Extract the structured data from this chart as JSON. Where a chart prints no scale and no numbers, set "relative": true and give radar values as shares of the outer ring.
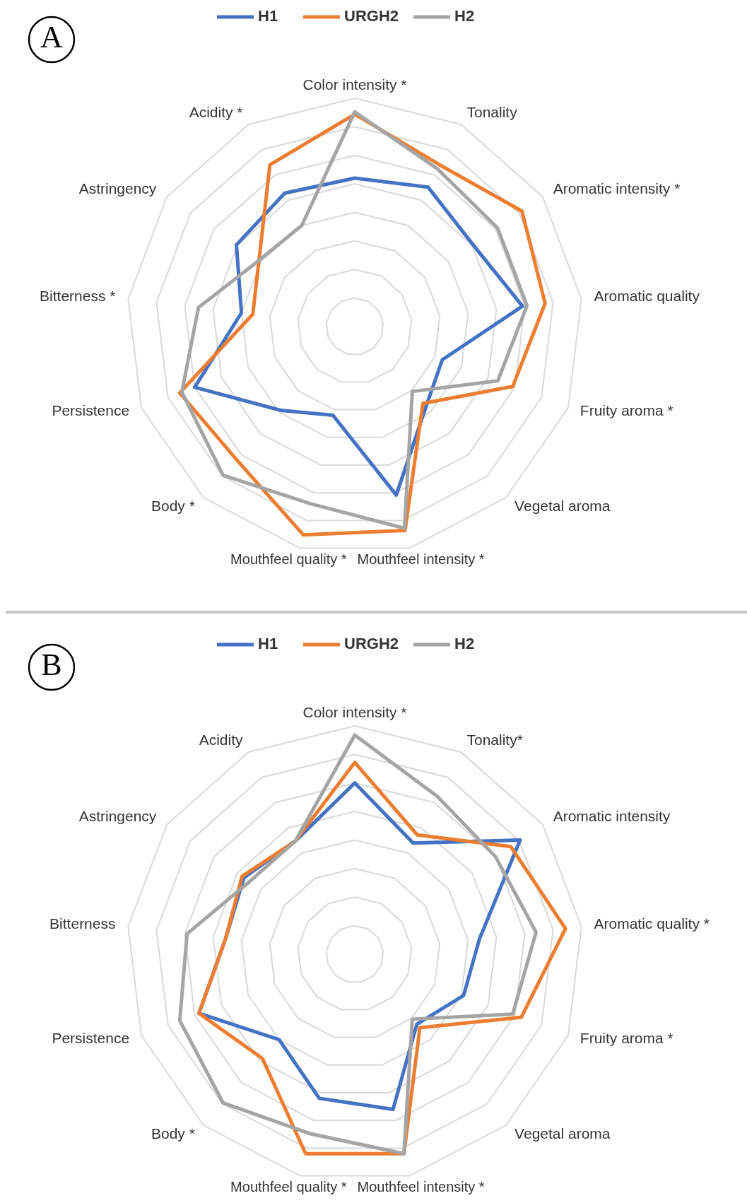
{
  "chart_data": [
    {
      "type": "radar",
      "title": "A",
      "relative": true,
      "grid": true,
      "legend": "top",
      "categories": [
        "Color intensity *",
        "Tonality",
        "Aromatic intensity *",
        "Aromatic quality",
        "Fruity aroma *",
        "Vegetal aroma",
        "Mouthfeel intensity *",
        "Mouthfeel quality *",
        "Body *",
        "Persistence",
        "Bitterness *",
        "Astringency",
        "Acidity *"
      ],
      "series": [
        {
          "name": "H1",
          "color": "#4472c4",
          "values": [
            0.65,
            0.69,
            0.63,
            0.74,
            0.41,
            0.47,
            0.76,
            0.4,
            0.49,
            0.75,
            0.5,
            0.63,
            0.66
          ]
        },
        {
          "name": "URGH2",
          "color": "#ed7d31",
          "values": [
            0.93,
            0.8,
            0.89,
            0.84,
            0.74,
            0.45,
            0.92,
            0.94,
            0.78,
            0.82,
            0.45,
            0.51,
            0.8
          ]
        },
        {
          "name": "H2",
          "color": "#a5a5a5",
          "values": [
            0.94,
            0.78,
            0.76,
            0.76,
            0.67,
            0.38,
            0.91,
            0.8,
            0.87,
            0.81,
            0.69,
            0.51,
            0.5
          ]
        }
      ]
    },
    {
      "type": "radar",
      "title": "B",
      "relative": true,
      "grid": true,
      "legend": "top",
      "categories": [
        "Color intensity *",
        "Tonality*",
        "Aromatic intensity",
        "Aromatic quality *",
        "Fruity aroma *",
        "Vegetal aroma",
        "Mouthfeel intensity *",
        "Mouthfeel quality *",
        "Body *",
        "Persistence",
        "Bitterness",
        "Astringency",
        "Acidity"
      ],
      "series": [
        {
          "name": "H1",
          "color": "#4472c4",
          "values": [
            0.75,
            0.55,
            0.88,
            0.55,
            0.51,
            0.41,
            0.7,
            0.65,
            0.5,
            0.73,
            0.57,
            0.59,
            0.56
          ]
        },
        {
          "name": "URGH2",
          "color": "#ed7d31",
          "values": [
            0.84,
            0.59,
            0.83,
            0.93,
            0.78,
            0.43,
            0.9,
            0.9,
            0.61,
            0.73,
            0.57,
            0.6,
            0.56
          ]
        },
        {
          "name": "H2",
          "color": "#a5a5a5",
          "values": [
            0.96,
            0.78,
            0.75,
            0.8,
            0.74,
            0.38,
            0.9,
            0.81,
            0.87,
            0.82,
            0.74,
            0.56,
            0.56
          ]
        }
      ]
    }
  ]
}
